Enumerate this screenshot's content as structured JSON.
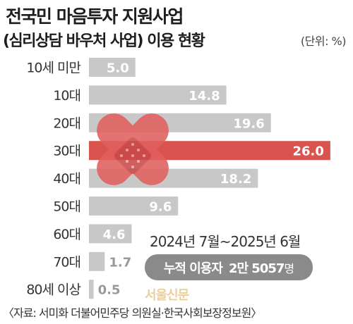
{
  "header": {
    "title_line1": "전국민 마음투자 지원사업",
    "title_line2": "(심리상담 바우처 사업) 이용 현황",
    "unit": "(단위: %)"
  },
  "chart_data": {
    "type": "bar",
    "orientation": "horizontal",
    "categories": [
      "10세 미만",
      "10대",
      "20대",
      "30대",
      "40대",
      "50대",
      "60대",
      "70대",
      "80세 이상"
    ],
    "values": [
      5.0,
      14.8,
      19.6,
      26.0,
      18.2,
      9.6,
      4.6,
      1.7,
      0.5
    ],
    "value_labels": [
      "5.0",
      "14.8",
      "19.6",
      "26.0",
      "18.2",
      "9.6",
      "4.6",
      "1.7",
      "0.5"
    ],
    "highlight_index": 3,
    "colors": {
      "bar": "#c8c8c8",
      "highlight": "#d9534f",
      "label": "#ffffff",
      "label_small": "#999999"
    },
    "grid": false,
    "legend": "none"
  },
  "annotation": {
    "period": "2024년 7월~2025년 6월",
    "cumulative_label": "누적 이용자",
    "cumulative_value": "2만 5057",
    "cumulative_unit": "명"
  },
  "watermark": "서울신문",
  "source": "〈자료: 서미화 더불어민주당 의원실·한국사회보장정보원〉",
  "decoration": {
    "icon": "bandage-heart-icon",
    "color": "#e0605e"
  }
}
